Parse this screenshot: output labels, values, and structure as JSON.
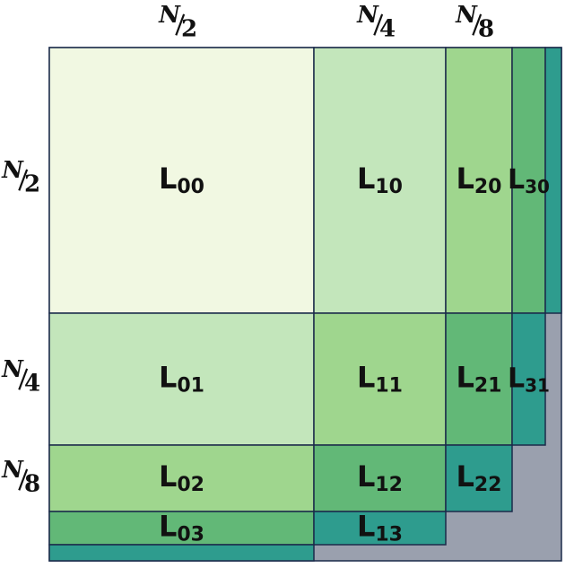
{
  "colors": {
    "c0": "#f1f8e2",
    "c1": "#c3e6bb",
    "c2": "#9fd68e",
    "c3": "#62b877",
    "c4": "#2e9c8e",
    "rest": "#9aa0ae",
    "border": "#1b2a4a"
  },
  "top_labels": [
    {
      "num": "N",
      "den": "2"
    },
    {
      "num": "N",
      "den": "4"
    },
    {
      "num": "N",
      "den": "8"
    }
  ],
  "left_labels": [
    {
      "num": "N",
      "den": "2"
    },
    {
      "num": "N",
      "den": "4"
    },
    {
      "num": "N",
      "den": "8"
    }
  ],
  "blocks": [
    {
      "id": "L00",
      "base": "L",
      "sub": "00",
      "color": "c0"
    },
    {
      "id": "L10",
      "base": "L",
      "sub": "10",
      "color": "c1"
    },
    {
      "id": "L20",
      "base": "L",
      "sub": "20",
      "color": "c2"
    },
    {
      "id": "L30",
      "base": "L",
      "sub": "30",
      "color": "c3"
    },
    {
      "id": "L01",
      "base": "L",
      "sub": "01",
      "color": "c1"
    },
    {
      "id": "L11",
      "base": "L",
      "sub": "11",
      "color": "c2"
    },
    {
      "id": "L21",
      "base": "L",
      "sub": "21",
      "color": "c3"
    },
    {
      "id": "L31",
      "base": "L",
      "sub": "31",
      "color": "c4"
    },
    {
      "id": "L02",
      "base": "L",
      "sub": "02",
      "color": "c2"
    },
    {
      "id": "L12",
      "base": "L",
      "sub": "12",
      "color": "c3"
    },
    {
      "id": "L22",
      "base": "L",
      "sub": "22",
      "color": "c4"
    },
    {
      "id": "L03",
      "base": "L",
      "sub": "03",
      "color": "c3"
    },
    {
      "id": "L13",
      "base": "L",
      "sub": "13",
      "color": "c4"
    }
  ]
}
